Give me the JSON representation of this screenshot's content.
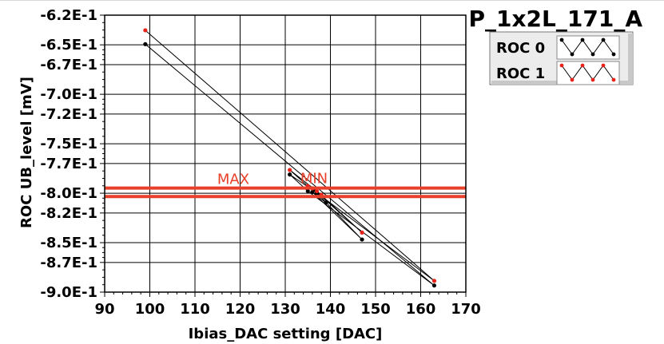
{
  "window": {
    "title": "P_1x2L_171_A"
  },
  "colors": {
    "roc0": "#000000",
    "roc1": "#e8231a",
    "cursor": "#e8402a",
    "grid": "#000000",
    "legend_border": "#777777"
  },
  "legend": {
    "placement": "top-right",
    "items": [
      {
        "label": "ROC 0",
        "color": "#000000"
      },
      {
        "label": "ROC 1",
        "color": "#e8231a"
      }
    ]
  },
  "cursors": [
    {
      "label": "MAX",
      "value": -0.7948
    },
    {
      "label": "MIN",
      "value": -0.8034
    }
  ],
  "chart_data": {
    "type": "line",
    "title": "P_1x2L_171_A",
    "xlabel": "Ibias_DAC setting [DAC]",
    "ylabel": "ROC UB_level [mV]",
    "xlim": [
      90,
      170
    ],
    "ylim": [
      -0.9,
      -0.62
    ],
    "grid": true,
    "x_ticks": [
      90,
      100,
      110,
      120,
      130,
      140,
      150,
      160,
      170
    ],
    "x_tick_labels": [
      "90",
      "100",
      "110",
      "120",
      "130",
      "140",
      "150",
      "160",
      "170"
    ],
    "y_ticks": [
      -0.62,
      -0.65,
      -0.67,
      -0.7,
      -0.72,
      -0.75,
      -0.77,
      -0.8,
      -0.82,
      -0.85,
      -0.87,
      -0.9
    ],
    "y_tick_labels": [
      "-6.2E-1",
      "-6.5E-1",
      "-6.7E-1",
      "-7.0E-1",
      "-7.2E-1",
      "-7.5E-1",
      "-7.7E-1",
      "-8.0E-1",
      "-8.2E-1",
      "-8.5E-1",
      "-8.7E-1",
      "-9.0E-1"
    ],
    "series": [
      {
        "name": "ROC 0",
        "color": "#000000",
        "x": [
          99,
          163,
          135,
          131,
          137,
          147,
          136,
          139
        ],
        "y": [
          -0.6493,
          -0.8933,
          -0.7979,
          -0.7811,
          -0.7998,
          -0.8468,
          -0.7988,
          -0.8096
        ]
      },
      {
        "name": "ROC 1",
        "color": "#e8231a",
        "x": [
          99,
          163,
          135,
          131,
          137,
          147,
          136,
          138
        ],
        "y": [
          -0.6353,
          -0.8886,
          -0.7928,
          -0.7765,
          -0.7979,
          -0.8398,
          -0.7951,
          -0.8016
        ]
      }
    ]
  }
}
